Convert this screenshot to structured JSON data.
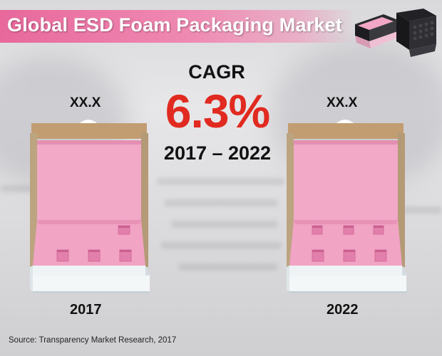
{
  "title": "Global ESD Foam Packaging Market",
  "cagr": {
    "label": "CAGR",
    "value": "6.3%",
    "period": "2017 – 2022"
  },
  "left": {
    "value": "XX.X",
    "year": "2017"
  },
  "right": {
    "value": "XX.X",
    "year": "2022"
  },
  "source": "Source: Transparency Market Research, 2017",
  "colors": {
    "banner_pink": "#e8689c",
    "cagr_red": "#e12a20",
    "foam_pink": "#f2a9c8",
    "cardboard": "#c8a47a"
  },
  "icons": {
    "left_box": "pink-foam-box-icon",
    "right_box": "pink-foam-box-icon",
    "corner_boxes": "esd-boxes-photo"
  }
}
